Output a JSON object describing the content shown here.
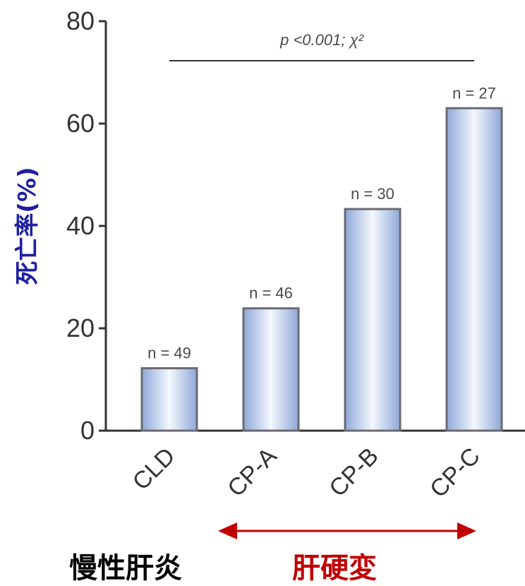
{
  "chart_data": {
    "type": "bar",
    "categories": [
      "CLD",
      "CP-A",
      "CP-B",
      "CP-C"
    ],
    "values": [
      12.2,
      23.9,
      43.3,
      63.0
    ],
    "n_labels": [
      "n = 49",
      "n = 46",
      "n = 30",
      "n = 27"
    ],
    "ylabel": "死亡率(%)",
    "ylim": [
      0,
      80
    ],
    "yticks": [
      "0",
      "20",
      "40",
      "60",
      "80"
    ],
    "significance": "p <0.001; χ²",
    "grid": false,
    "legend": "none"
  },
  "groups": {
    "chronic_hepatitis": "慢性肝炎",
    "cirrhosis": "肝硬変"
  },
  "colors": {
    "bar_edge": "#6a6a72",
    "bar_light": "#f4f7fd",
    "bar_dark": "#8fa8d8",
    "axis": "#333333",
    "ylabel": "#1f1fa3",
    "group_black": "#000000",
    "group_red": "#c00000",
    "arrow": "#c00000"
  }
}
